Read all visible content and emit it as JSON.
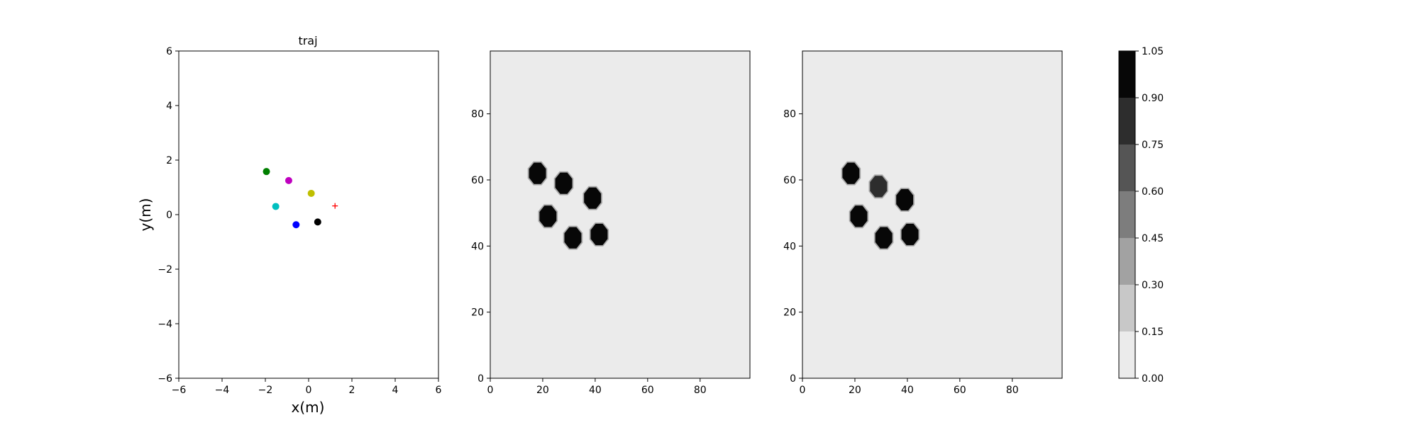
{
  "chart_data": [
    {
      "type": "scatter",
      "title": "traj",
      "xlabel": "x(m)",
      "ylabel": "y(m)",
      "xlim": [
        -6,
        6
      ],
      "ylim": [
        -6,
        6
      ],
      "xticks": [
        "−6",
        "−4",
        "−2",
        "0",
        "2",
        "4",
        "6"
      ],
      "yticks": [
        "−6",
        "−4",
        "−2",
        "0",
        "2",
        "4",
        "6"
      ],
      "xtick_values": [
        -6,
        -4,
        -2,
        0,
        2,
        4,
        6
      ],
      "ytick_values": [
        -6,
        -4,
        -2,
        0,
        2,
        4,
        6
      ],
      "grid": false,
      "points": [
        {
          "x": -1.95,
          "y": 1.58,
          "color": "#007f00",
          "marker": "dot"
        },
        {
          "x": -0.92,
          "y": 1.25,
          "color": "#bf00bf",
          "marker": "dot"
        },
        {
          "x": 0.12,
          "y": 0.78,
          "color": "#bfbf00",
          "marker": "dot"
        },
        {
          "x": -1.52,
          "y": 0.3,
          "color": "#00bfbf",
          "marker": "dot"
        },
        {
          "x": -0.58,
          "y": -0.37,
          "color": "#0000ff",
          "marker": "dot"
        },
        {
          "x": 0.42,
          "y": -0.27,
          "color": "#000000",
          "marker": "dot"
        },
        {
          "x": 1.22,
          "y": 0.32,
          "color": "#ff0000",
          "marker": "plus"
        }
      ]
    },
    {
      "type": "heatmap",
      "title": "",
      "xlim": [
        0,
        99
      ],
      "ylim": [
        0,
        99
      ],
      "xticks": [
        "0",
        "20",
        "40",
        "60",
        "80"
      ],
      "yticks": [
        "0",
        "20",
        "40",
        "60",
        "80"
      ],
      "tick_values": [
        0,
        20,
        40,
        60,
        80
      ],
      "background_value": 0.08,
      "blobs": [
        {
          "x": 18,
          "y": 62,
          "value": 1.0
        },
        {
          "x": 28,
          "y": 59,
          "value": 1.0
        },
        {
          "x": 39,
          "y": 54.5,
          "value": 1.0
        },
        {
          "x": 22,
          "y": 49,
          "value": 1.0
        },
        {
          "x": 31.5,
          "y": 42.5,
          "value": 1.0
        },
        {
          "x": 41.5,
          "y": 43.5,
          "value": 1.0
        }
      ]
    },
    {
      "type": "heatmap",
      "title": "",
      "xlim": [
        0,
        99
      ],
      "ylim": [
        0,
        99
      ],
      "xticks": [
        "0",
        "20",
        "40",
        "60",
        "80"
      ],
      "yticks": [
        "0",
        "20",
        "40",
        "60",
        "80"
      ],
      "tick_values": [
        0,
        20,
        40,
        60,
        80
      ],
      "background_value": 0.08,
      "blobs": [
        {
          "x": 18.5,
          "y": 62,
          "value": 1.0
        },
        {
          "x": 29,
          "y": 58,
          "value": 0.9
        },
        {
          "x": 39,
          "y": 54,
          "value": 0.95
        },
        {
          "x": 21.5,
          "y": 49,
          "value": 1.0
        },
        {
          "x": 31,
          "y": 42.5,
          "value": 1.0
        },
        {
          "x": 41,
          "y": 43.5,
          "value": 1.0
        }
      ]
    },
    {
      "type": "colorbar",
      "levels": [
        0.0,
        0.15,
        0.3,
        0.45,
        0.6,
        0.75,
        0.9,
        1.05
      ],
      "tick_labels": [
        "0.00",
        "0.15",
        "0.30",
        "0.45",
        "0.60",
        "0.75",
        "0.90",
        "1.05"
      ],
      "colors": [
        "#ebebeb",
        "#c8c8c8",
        "#a2a2a2",
        "#7d7d7d",
        "#555555",
        "#2d2d2d",
        "#070707"
      ]
    }
  ]
}
